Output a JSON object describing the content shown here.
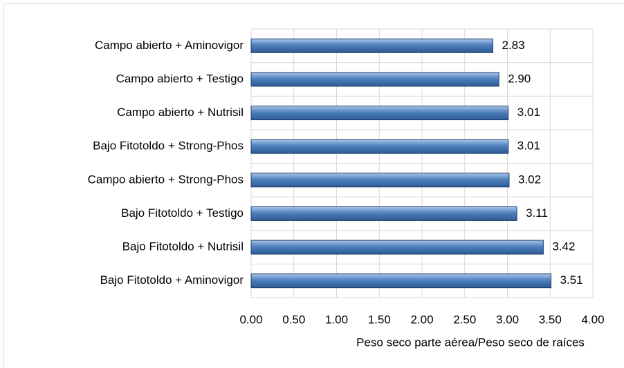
{
  "chart_data": {
    "type": "barh",
    "xlabel": "Peso seco parte aérea/Peso seco de raíces",
    "categories": [
      "Campo abierto + Aminovigor",
      "Campo abierto + Testigo",
      "Campo abierto + Nutrisil",
      "Bajo Fitotoldo + Strong-Phos",
      "Campo abierto + Strong-Phos",
      "Bajo Fitotoldo + Testigo",
      "Bajo Fitotoldo + Nutrisil",
      "Bajo Fitotoldo + Aminovigor"
    ],
    "values": [
      2.83,
      2.9,
      3.01,
      3.01,
      3.02,
      3.11,
      3.42,
      3.51
    ],
    "value_labels": [
      "2.83",
      "2.90",
      "3.01",
      "3.01",
      "3.02",
      "3.11",
      "3.42",
      "3.51"
    ],
    "color": "#4f81bd",
    "xlim": [
      0,
      4
    ],
    "xticks": [
      {
        "value": 0,
        "label": "0.00"
      },
      {
        "value": 0.5,
        "label": "0.50"
      },
      {
        "value": 1,
        "label": "1.00"
      },
      {
        "value": 1.5,
        "label": "1.50"
      },
      {
        "value": 2,
        "label": "2.00"
      },
      {
        "value": 2.5,
        "label": "2.50"
      },
      {
        "value": 3,
        "label": "3.00"
      },
      {
        "value": 3.5,
        "label": "3.50"
      },
      {
        "value": 4,
        "label": "4.00"
      }
    ],
    "grid": true
  }
}
